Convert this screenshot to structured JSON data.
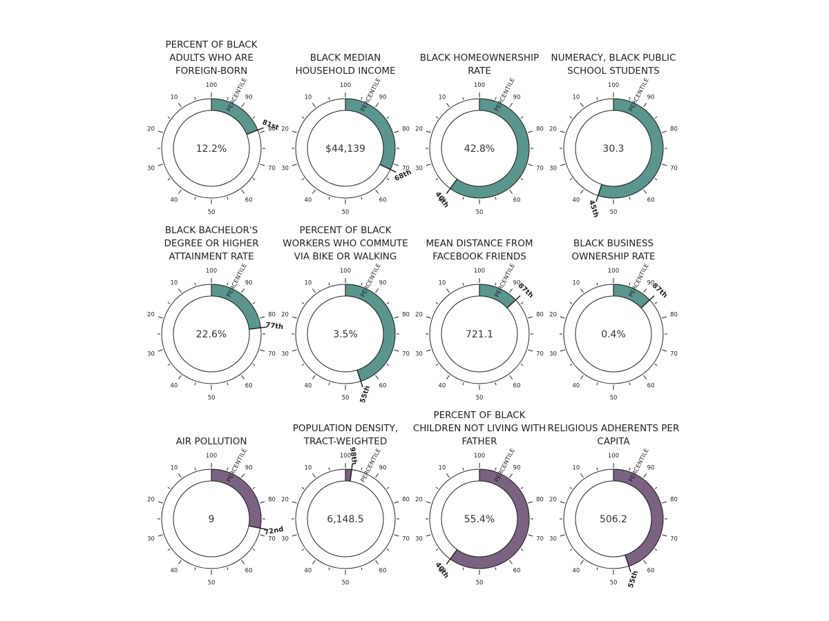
{
  "percentile_word": "PERCENTILE",
  "colors": {
    "teal": "#5a968d",
    "purple": "#7b6282",
    "outline": "#222222"
  },
  "ticks": {
    "major": [
      100,
      10,
      20,
      30,
      40,
      50,
      60,
      70,
      80,
      90
    ]
  },
  "chart_data": [
    {
      "type": "gauge",
      "title": [
        "PERCENT OF BLACK",
        "ADULTS WHO ARE",
        "FOREIGN-BORN"
      ],
      "value_label": "12.2%",
      "percentile": 81,
      "percentile_label": "81st",
      "color": "teal"
    },
    {
      "type": "gauge",
      "title": [
        "BLACK MEDIAN",
        "HOUSEHOLD INCOME"
      ],
      "value_label": "$44,139",
      "percentile": 68,
      "percentile_label": "68th",
      "color": "teal"
    },
    {
      "type": "gauge",
      "title": [
        "BLACK HOMEOWNERSHIP",
        "RATE"
      ],
      "value_label": "42.8%",
      "percentile": 40,
      "percentile_label": "40th",
      "color": "teal"
    },
    {
      "type": "gauge",
      "title": [
        "NUMERACY, BLACK PUBLIC",
        "SCHOOL STUDENTS"
      ],
      "value_label": "30.3",
      "percentile": 45,
      "percentile_label": "45th",
      "color": "teal"
    },
    {
      "type": "gauge",
      "title": [
        "BLACK BACHELOR'S",
        "DEGREE OR HIGHER",
        "ATTAINMENT RATE"
      ],
      "value_label": "22.6%",
      "percentile": 77,
      "percentile_label": "77th",
      "color": "teal"
    },
    {
      "type": "gauge",
      "title": [
        "PERCENT OF BLACK",
        "WORKERS WHO COMMUTE",
        "VIA BIKE OR WALKING"
      ],
      "value_label": "3.5%",
      "percentile": 55,
      "percentile_label": "55th",
      "color": "teal"
    },
    {
      "type": "gauge",
      "title": [
        "MEAN DISTANCE FROM",
        "FACEBOOK FRIENDS"
      ],
      "value_label": "721.1",
      "percentile": 87,
      "percentile_label": "87th",
      "color": "teal"
    },
    {
      "type": "gauge",
      "title": [
        "BLACK BUSINESS",
        "OWNERSHIP RATE"
      ],
      "value_label": "0.4%",
      "percentile": 87,
      "percentile_label": "87th",
      "color": "teal"
    },
    {
      "type": "gauge",
      "title": [
        "AIR POLLUTION"
      ],
      "value_label": "9",
      "percentile": 72,
      "percentile_label": "72nd",
      "color": "purple"
    },
    {
      "type": "gauge",
      "title": [
        "POPULATION DENSITY,",
        "TRACT-WEIGHTED"
      ],
      "value_label": "6,148.5",
      "percentile": 98,
      "percentile_label": "98th",
      "color": "purple"
    },
    {
      "type": "gauge",
      "title": [
        "PERCENT OF BLACK",
        "CHILDREN NOT LIVING WITH",
        "FATHER"
      ],
      "value_label": "55.4%",
      "percentile": 40,
      "percentile_label": "40th",
      "color": "purple"
    },
    {
      "type": "gauge",
      "title": [
        "RELIGIOUS ADHERENTS PER",
        "CAPITA"
      ],
      "value_label": "506.2",
      "percentile": 55,
      "percentile_label": "55th",
      "color": "purple"
    }
  ]
}
